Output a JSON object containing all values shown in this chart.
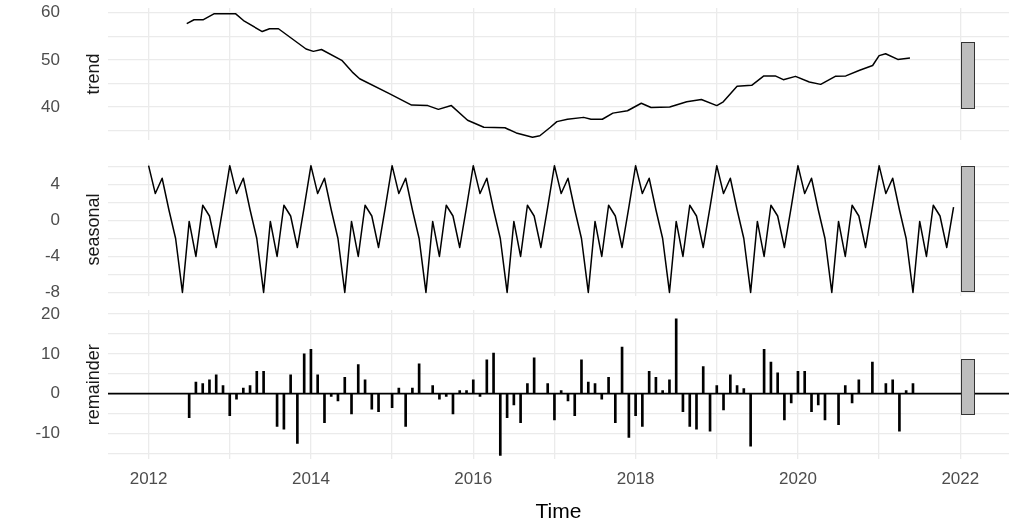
{
  "chart_data": [
    {
      "type": "line",
      "ylabel": "trend",
      "tick_labels": "y",
      "grid": true,
      "x": [
        2012.47,
        2012.56,
        2012.67,
        2012.81,
        2013.07,
        2013.18,
        2013.4,
        2013.49,
        2013.6,
        2013.94,
        2014.03,
        2014.13,
        2014.38,
        2014.51,
        2014.6,
        2014.96,
        2015.24,
        2015.44,
        2015.57,
        2015.73,
        2015.93,
        2016.13,
        2016.39,
        2016.53,
        2016.73,
        2016.82,
        2016.95,
        2017.03,
        2017.16,
        2017.36,
        2017.45,
        2017.59,
        2017.72,
        2017.9,
        2018.07,
        2018.19,
        2018.42,
        2018.63,
        2018.81,
        2019.0,
        2019.08,
        2019.25,
        2019.43,
        2019.58,
        2019.72,
        2019.82,
        2019.97,
        2020.14,
        2020.28,
        2020.46,
        2020.59,
        2020.76,
        2020.92,
        2021.0,
        2021.08,
        2021.23,
        2021.38
      ],
      "series": [
        {
          "color": "#000000",
          "values": [
            57.7,
            58.5,
            58.5,
            59.8,
            59.8,
            58.2,
            56.0,
            56.6,
            56.6,
            52.3,
            51.8,
            52.2,
            49.9,
            47.4,
            46.0,
            42.9,
            40.4,
            40.3,
            39.5,
            40.3,
            37.2,
            35.7,
            35.6,
            34.5,
            33.6,
            33.9,
            35.7,
            36.9,
            37.4,
            37.8,
            37.4,
            37.4,
            38.7,
            39.2,
            40.8,
            39.9,
            40.0,
            41.1,
            41.6,
            40.3,
            41.1,
            44.4,
            44.6,
            46.6,
            46.6,
            45.8,
            46.5,
            45.3,
            44.8,
            46.5,
            46.6,
            47.8,
            48.8,
            50.9,
            51.3,
            50.1,
            50.4
          ]
        }
      ],
      "xlim": [
        2011.5,
        2022.6
      ],
      "xticks": [
        {
          "value": 2012,
          "label": null
        },
        {
          "value": 2013,
          "label": null
        },
        {
          "value": 2014,
          "label": null
        },
        {
          "value": 2015,
          "label": null
        },
        {
          "value": 2016,
          "label": null
        },
        {
          "value": 2017,
          "label": null
        },
        {
          "value": 2018,
          "label": null
        },
        {
          "value": 2019,
          "label": null
        },
        {
          "value": 2020,
          "label": null
        },
        {
          "value": 2021,
          "label": null
        },
        {
          "value": 2022,
          "label": null
        }
      ],
      "ylim": [
        33,
        61
      ],
      "yticks": [
        {
          "value": 35,
          "label": null
        },
        40,
        {
          "value": 45,
          "label": null
        },
        50,
        {
          "value": 55,
          "label": null
        },
        60
      ]
    },
    {
      "type": "line",
      "ylabel": "seasonal",
      "tick_labels": "y",
      "grid": true,
      "x": [
        2012,
        2012.083,
        2012.167,
        2012.25,
        2012.333,
        2012.417,
        2012.5,
        2012.583,
        2012.667,
        2012.75,
        2012.833,
        2012.917,
        2013,
        2013.083,
        2013.167,
        2013.25,
        2013.333,
        2013.417,
        2013.5,
        2013.583,
        2013.667,
        2013.75,
        2013.833,
        2013.917,
        2014,
        2014.083,
        2014.167,
        2014.25,
        2014.333,
        2014.417,
        2014.5,
        2014.583,
        2014.667,
        2014.75,
        2014.833,
        2014.917,
        2015,
        2015.083,
        2015.167,
        2015.25,
        2015.333,
        2015.417,
        2015.5,
        2015.583,
        2015.667,
        2015.75,
        2015.833,
        2015.917,
        2016,
        2016.083,
        2016.167,
        2016.25,
        2016.333,
        2016.417,
        2016.5,
        2016.583,
        2016.667,
        2016.75,
        2016.833,
        2016.917,
        2017,
        2017.083,
        2017.167,
        2017.25,
        2017.333,
        2017.417,
        2017.5,
        2017.583,
        2017.667,
        2017.75,
        2017.833,
        2017.917,
        2018,
        2018.083,
        2018.167,
        2018.25,
        2018.333,
        2018.417,
        2018.5,
        2018.583,
        2018.667,
        2018.75,
        2018.833,
        2018.917,
        2019,
        2019.083,
        2019.167,
        2019.25,
        2019.333,
        2019.417,
        2019.5,
        2019.583,
        2019.667,
        2019.75,
        2019.833,
        2019.917,
        2020,
        2020.083,
        2020.167,
        2020.25,
        2020.333,
        2020.417,
        2020.5,
        2020.583,
        2020.667,
        2020.75,
        2020.833,
        2020.917,
        2021,
        2021.083,
        2021.167,
        2021.25,
        2021.333,
        2021.417,
        2021.5,
        2021.583,
        2021.667,
        2021.75,
        2021.833,
        2021.917
      ],
      "series": [
        {
          "color": "#000000",
          "values": [
            6.1,
            3.0,
            4.7,
            1.2,
            -2.0,
            -8.0,
            -0.1,
            -4.0,
            1.7,
            0.5,
            -3.0,
            1.5,
            6.1,
            3.0,
            4.7,
            1.2,
            -2.0,
            -8.0,
            -0.1,
            -4.0,
            1.7,
            0.5,
            -3.0,
            1.5,
            6.1,
            3.0,
            4.7,
            1.2,
            -2.0,
            -8.0,
            -0.1,
            -4.0,
            1.7,
            0.5,
            -3.0,
            1.5,
            6.1,
            3.0,
            4.7,
            1.2,
            -2.0,
            -8.0,
            -0.1,
            -4.0,
            1.7,
            0.5,
            -3.0,
            1.5,
            6.1,
            3.0,
            4.7,
            1.2,
            -2.0,
            -8.0,
            -0.1,
            -4.0,
            1.7,
            0.5,
            -3.0,
            1.5,
            6.1,
            3.0,
            4.7,
            1.2,
            -2.0,
            -8.0,
            -0.1,
            -4.0,
            1.7,
            0.5,
            -3.0,
            1.5,
            6.1,
            3.0,
            4.7,
            1.2,
            -2.0,
            -8.0,
            -0.1,
            -4.0,
            1.7,
            0.5,
            -3.0,
            1.5,
            6.1,
            3.0,
            4.7,
            1.2,
            -2.0,
            -8.0,
            -0.1,
            -4.0,
            1.7,
            0.5,
            -3.0,
            1.5,
            6.1,
            3.0,
            4.7,
            1.2,
            -2.0,
            -8.0,
            -0.1,
            -4.0,
            1.7,
            0.5,
            -3.0,
            1.5,
            6.1,
            3.0,
            4.7,
            1.2,
            -2.0,
            -8.0,
            -0.1,
            -4.0,
            1.7,
            0.5,
            -3.0,
            1.5
          ]
        }
      ],
      "xlim": [
        2011.5,
        2022.6
      ],
      "xticks": [
        {
          "value": 2012,
          "label": null
        },
        {
          "value": 2013,
          "label": null
        },
        {
          "value": 2014,
          "label": null
        },
        {
          "value": 2015,
          "label": null
        },
        {
          "value": 2016,
          "label": null
        },
        {
          "value": 2017,
          "label": null
        },
        {
          "value": 2018,
          "label": null
        },
        {
          "value": 2019,
          "label": null
        },
        {
          "value": 2020,
          "label": null
        },
        {
          "value": 2021,
          "label": null
        },
        {
          "value": 2022,
          "label": null
        }
      ],
      "ylim": [
        -8.4,
        6.4
      ],
      "yticks": [
        -8,
        {
          "value": -6,
          "label": null
        },
        -4,
        {
          "value": -2,
          "label": null
        },
        0,
        {
          "value": 2,
          "label": null
        },
        4,
        {
          "value": 6,
          "label": null
        }
      ]
    },
    {
      "type": "bar",
      "ylabel": "remainder",
      "xlabel": "Time",
      "grid": true,
      "x": [
        2012.5,
        2012.583,
        2012.667,
        2012.75,
        2012.833,
        2012.917,
        2013,
        2013.083,
        2013.167,
        2013.25,
        2013.333,
        2013.417,
        2013.5,
        2013.583,
        2013.667,
        2013.75,
        2013.833,
        2013.917,
        2014,
        2014.083,
        2014.167,
        2014.25,
        2014.333,
        2014.417,
        2014.5,
        2014.583,
        2014.667,
        2014.75,
        2014.833,
        2014.917,
        2015,
        2015.083,
        2015.167,
        2015.25,
        2015.333,
        2015.417,
        2015.5,
        2015.583,
        2015.667,
        2015.75,
        2015.833,
        2015.917,
        2016,
        2016.083,
        2016.167,
        2016.25,
        2016.333,
        2016.417,
        2016.5,
        2016.583,
        2016.667,
        2016.75,
        2016.833,
        2016.917,
        2017,
        2017.083,
        2017.167,
        2017.25,
        2017.333,
        2017.417,
        2017.5,
        2017.583,
        2017.667,
        2017.75,
        2017.833,
        2017.917,
        2018,
        2018.083,
        2018.167,
        2018.25,
        2018.333,
        2018.417,
        2018.5,
        2018.583,
        2018.667,
        2018.75,
        2018.833,
        2018.917,
        2019,
        2019.083,
        2019.167,
        2019.25,
        2019.333,
        2019.417,
        2019.5,
        2019.583,
        2019.667,
        2019.75,
        2019.833,
        2019.917,
        2020,
        2020.083,
        2020.167,
        2020.25,
        2020.333,
        2020.417,
        2020.5,
        2020.583,
        2020.667,
        2020.75,
        2020.833,
        2020.917,
        2021,
        2021.083,
        2021.167,
        2021.25,
        2021.333,
        2021.417
      ],
      "series": [
        {
          "color": "#000000",
          "values": [
            -6.0,
            2.9,
            2.5,
            3.5,
            4.7,
            2.0,
            -5.5,
            -1.4,
            1.4,
            2.0,
            5.6,
            5.6,
            0,
            -8.2,
            -8.9,
            4.7,
            -12.5,
            10.0,
            11.1,
            4.7,
            -7.3,
            -0.7,
            -1.8,
            4.1,
            -5.1,
            7.3,
            3.5,
            -3.9,
            -4.5,
            0,
            -3.5,
            1.4,
            -8.2,
            1.4,
            7.5,
            0,
            2.0,
            -1.4,
            -0.7,
            -5.1,
            0.8,
            0.8,
            3.5,
            -0.7,
            8.5,
            10.2,
            -15.5,
            -6.0,
            -2.8,
            -7.3,
            2.5,
            9.0,
            0,
            2.5,
            -6.6,
            0.8,
            -1.8,
            -5.5,
            8.5,
            2.9,
            2.5,
            -1.4,
            4.1,
            -7.3,
            11.7,
            -11.0,
            -5.5,
            -8.2,
            5.6,
            4.1,
            0.8,
            3.5,
            18.8,
            -4.5,
            -8.2,
            -8.9,
            6.8,
            -9.4,
            2.0,
            -4.1,
            4.7,
            2.0,
            1.3,
            -13.2,
            0,
            11.1,
            7.9,
            5.2,
            -6.6,
            -2.3,
            5.6,
            5.6,
            -4.5,
            -2.8,
            -6.6,
            0,
            -7.8,
            2.0,
            -2.3,
            3.5,
            0,
            7.9,
            0,
            2.5,
            3.5,
            -9.4,
            0.8,
            2.5
          ]
        }
      ],
      "xlim": [
        2011.5,
        2022.6
      ],
      "xticks": [
        {
          "value": 2012,
          "label": "2012"
        },
        {
          "value": 2013,
          "label": null
        },
        {
          "value": 2014,
          "label": "2014"
        },
        {
          "value": 2015,
          "label": null
        },
        {
          "value": 2016,
          "label": "2016"
        },
        {
          "value": 2017,
          "label": null
        },
        {
          "value": 2018,
          "label": "2018"
        },
        {
          "value": 2019,
          "label": null
        },
        {
          "value": 2020,
          "label": "2020"
        },
        {
          "value": 2021,
          "label": null
        },
        {
          "value": 2022,
          "label": "2022"
        }
      ],
      "ylim": [
        -16.5,
        21
      ],
      "yticks": [
        {
          "value": -15,
          "label": null
        },
        -10,
        {
          "value": -5,
          "label": null
        },
        0,
        {
          "value": 5,
          "label": null
        },
        10,
        {
          "value": 15,
          "label": null
        },
        20
      ],
      "ref_lines": [
        {
          "axis": "y",
          "value": 0,
          "color": "#000000"
        }
      ]
    }
  ]
}
